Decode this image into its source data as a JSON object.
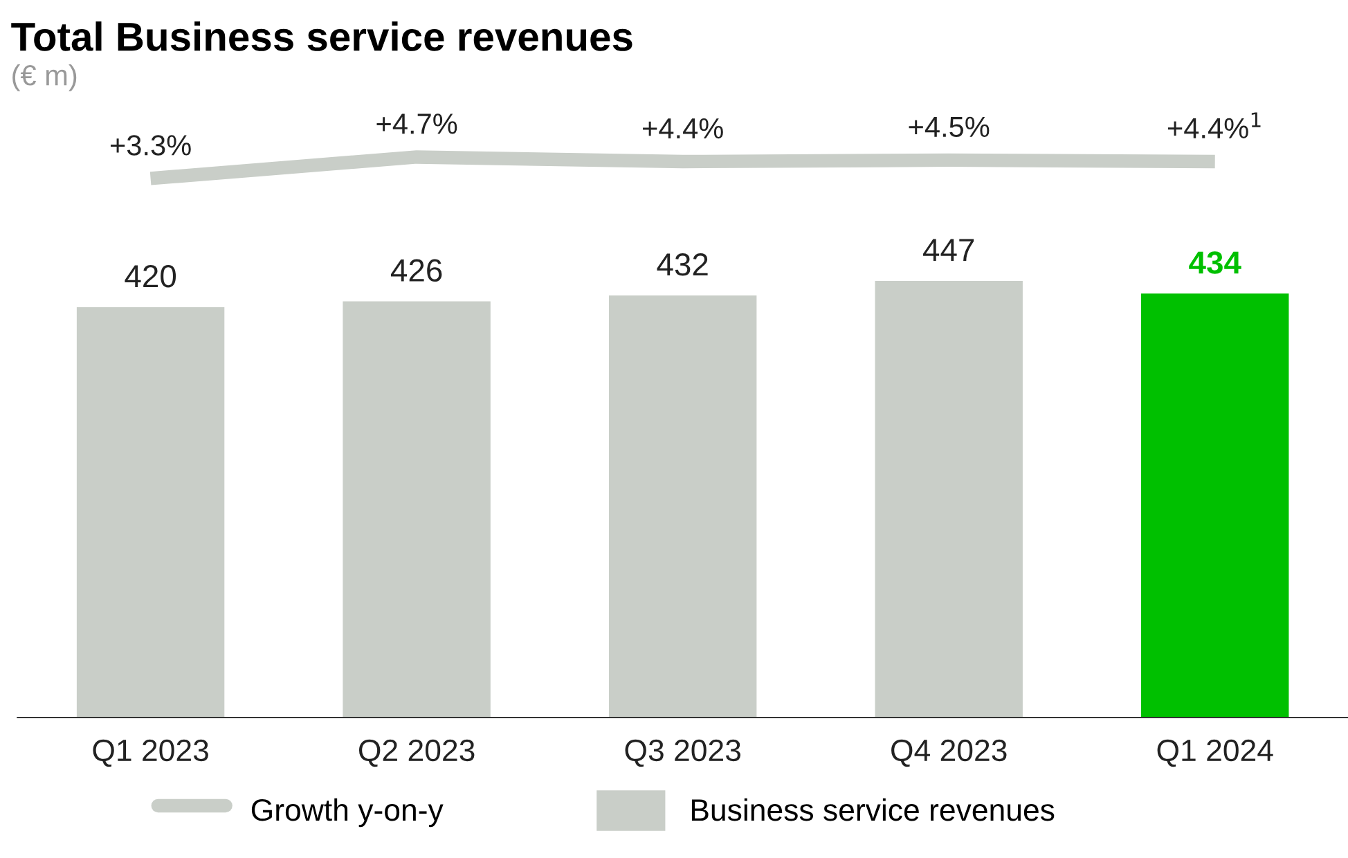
{
  "chart_data": [
    {
      "type": "line",
      "title": "Total Business service revenues",
      "subtitle": "(€ m)",
      "categories": [
        null,
        null,
        null,
        null,
        null
      ],
      "series": [
        {
          "name": "Growth y-on-y",
          "color": "#c9cec8",
          "values": [
            3.3,
            4.7,
            4.4,
            4.5,
            4.4
          ],
          "value_labels": [
            "+3.3%",
            "+4.7%",
            "+4.4%",
            "+4.5%",
            "+4.4%$^{1}$"
          ]
        }
      ],
      "tick_labels": false,
      "legend": "bottom",
      "marker": "none",
      "line_style": "solid"
    },
    {
      "type": "bar",
      "categories": [
        "Q1 2023",
        "Q2 2023",
        "Q3 2023",
        "Q4 2023",
        "Q1 2024"
      ],
      "series": [
        {
          "name": "Business service revenues",
          "color": "#c9cec8",
          "colors": [
            "#c9cec8",
            "#c9cec8",
            "#c9cec8",
            "#c9cec8",
            "#00c000"
          ],
          "values": [
            420,
            426,
            432,
            447,
            434
          ],
          "value_labels": [
            "420",
            "426",
            "432",
            "447",
            "434"
          ]
        }
      ],
      "tick_labels": "x",
      "legend": "bottom"
    }
  ]
}
